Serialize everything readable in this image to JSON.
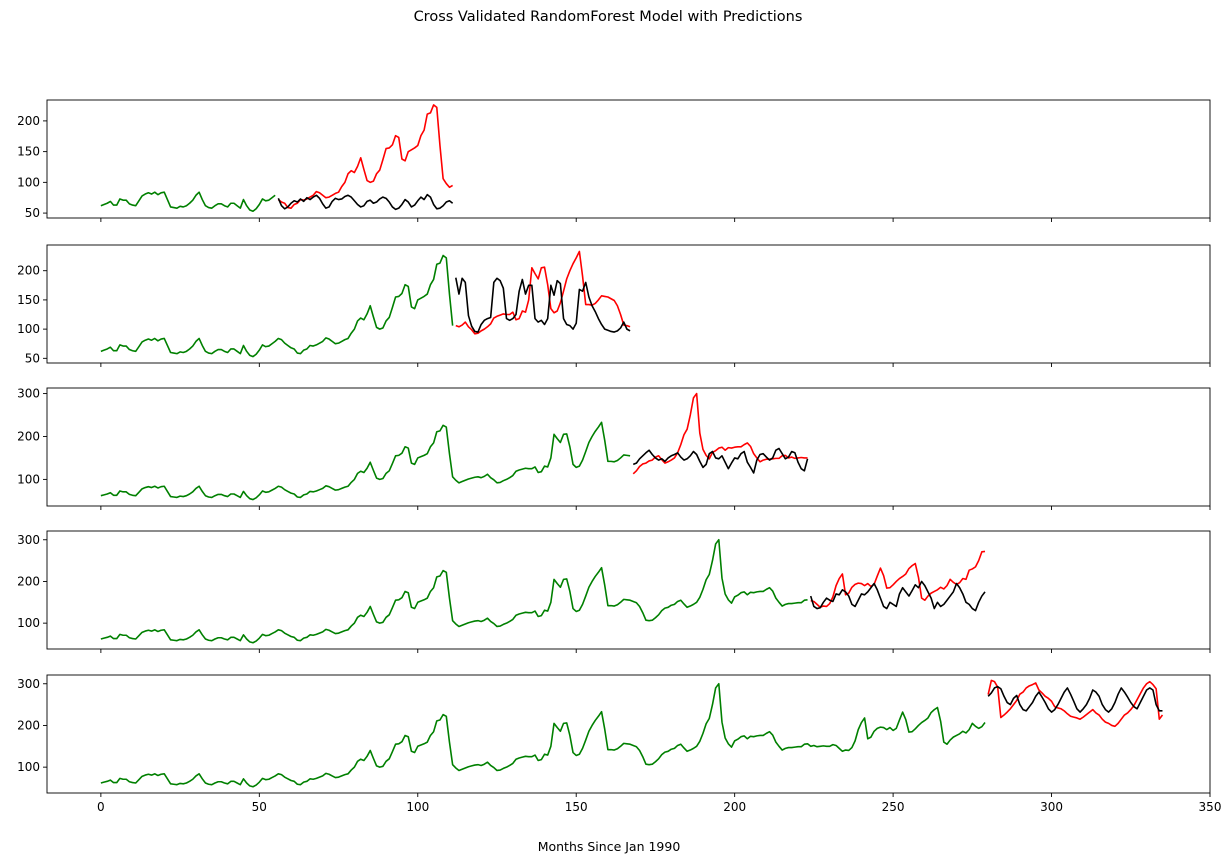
{
  "chart_data": {
    "type": "line",
    "title": "Cross Validated RandomForest Model with Predictions",
    "xlabel": "Months Since Jan 1990",
    "ylabel": "",
    "sharex": true,
    "xlim": [
      -17,
      350
    ],
    "xticks": [
      0,
      50,
      100,
      150,
      200,
      250,
      300,
      350
    ],
    "xtick_labels": [
      "0",
      "50",
      "100",
      "150",
      "200",
      "250",
      "300",
      "350"
    ],
    "colors": {
      "train": "#008000",
      "actual": "#ff0000",
      "predicted": "#000000"
    },
    "series_base": {
      "description": "monthly values used by every panel (panel k shows a contiguous slice of this series)",
      "values": [
        62,
        64,
        66,
        69,
        63,
        63,
        73,
        71,
        71,
        65,
        63,
        62,
        70,
        78,
        81,
        83,
        81,
        84,
        80,
        83,
        84,
        72,
        60,
        59,
        58,
        61,
        60,
        62,
        66,
        71,
        79,
        84,
        72,
        62,
        59,
        58,
        62,
        65,
        65,
        62,
        60,
        66,
        66,
        62,
        58,
        72,
        62,
        55,
        53,
        57,
        64,
        73,
        70,
        71,
        75,
        79,
        84,
        82,
        76,
        72,
        68,
        66,
        59,
        58,
        64,
        66,
        72,
        71,
        73,
        76,
        79,
        85,
        83,
        79,
        75,
        76,
        79,
        82,
        84,
        93,
        100,
        114,
        119,
        116,
        126,
        140,
        121,
        103,
        100,
        102,
        114,
        120,
        137,
        155,
        156,
        161,
        176,
        173,
        138,
        135,
        150,
        153,
        156,
        160,
        176,
        185,
        211,
        213,
        226,
        222,
        160,
        106,
        98,
        92,
        95,
        98,
        101,
        103,
        105,
        106,
        104,
        107,
        112,
        104,
        99,
        92,
        93,
        97,
        100,
        104,
        109,
        119,
        122,
        124,
        126,
        125,
        125,
        129,
        116,
        118,
        131,
        129,
        150,
        205,
        195,
        186,
        205,
        206,
        176,
        135,
        128,
        131,
        145,
        165,
        186,
        200,
        212,
        222,
        233,
        191,
        142,
        142,
        141,
        144,
        150,
        157,
        156,
        155,
        152,
        149,
        140,
        125,
        107,
        106,
        107,
        113,
        120,
        130,
        136,
        138,
        143,
        145,
        152,
        155,
        146,
        138,
        141,
        145,
        150,
        162,
        181,
        204,
        217,
        250,
        290,
        300,
        208,
        170,
        156,
        148,
        163,
        167,
        173,
        175,
        168,
        174,
        173,
        175,
        176,
        176,
        181,
        185,
        177,
        160,
        150,
        141,
        145,
        147,
        147,
        148,
        149,
        149,
        155,
        156,
        150,
        152,
        149,
        150,
        151,
        150,
        150,
        154,
        152,
        145,
        138,
        141,
        140,
        147,
        163,
        190,
        207,
        218,
        168,
        172,
        186,
        193,
        196,
        195,
        190,
        195,
        188,
        193,
        213,
        232,
        214,
        184,
        185,
        192,
        200,
        207,
        212,
        218,
        231,
        238,
        243,
        210,
        160,
        155,
        165,
        172,
        176,
        180,
        186,
        182,
        190,
        205,
        198,
        193,
        197,
        207,
        205,
        227,
        230,
        235,
        250,
        271,
        272,
        274,
        308,
        305,
        292,
        219,
        225,
        232,
        240,
        250,
        260,
        275
      ]
    },
    "panels": [
      {
        "train": {
          "x_start": 0,
          "x_end": 56
        },
        "test_x": [
          56,
          57,
          58,
          59,
          60,
          61,
          62,
          63,
          64,
          65,
          66,
          67,
          68,
          69,
          70,
          71,
          72,
          73,
          74,
          75,
          76,
          77,
          78,
          79,
          80,
          81,
          82,
          83,
          84,
          85,
          86,
          87,
          88,
          89,
          90,
          91,
          92,
          93,
          94,
          95,
          96,
          97,
          98,
          99,
          100,
          101,
          102,
          103,
          104,
          105,
          106,
          107,
          108,
          109,
          110,
          111
        ],
        "actual": [
          72,
          68,
          66,
          59,
          58,
          64,
          66,
          72,
          71,
          73,
          76,
          79,
          85,
          83,
          79,
          75,
          76,
          79,
          82,
          84,
          93,
          100,
          114,
          119,
          116,
          126,
          140,
          121,
          103,
          100,
          102,
          114,
          120,
          137,
          155,
          156,
          161,
          176,
          173,
          138,
          135,
          150,
          153,
          156,
          160,
          176,
          185,
          211,
          213,
          226,
          222,
          160,
          106,
          98,
          92,
          95
        ],
        "predicted": [
          74,
          62,
          57,
          60,
          66,
          70,
          68,
          73,
          69,
          75,
          72,
          76,
          79,
          74,
          65,
          58,
          60,
          69,
          74,
          72,
          73,
          77,
          79,
          76,
          70,
          64,
          60,
          62,
          69,
          71,
          66,
          68,
          73,
          76,
          74,
          68,
          60,
          56,
          58,
          64,
          72,
          68,
          60,
          63,
          70,
          76,
          72,
          80,
          76,
          64,
          57,
          58,
          62,
          68,
          70,
          66
        ]
      },
      {
        "train": {
          "x_start": 0,
          "x_end": 112
        },
        "test_x": [
          112,
          113,
          114,
          115,
          116,
          117,
          118,
          119,
          120,
          121,
          122,
          123,
          124,
          125,
          126,
          127,
          128,
          129,
          130,
          131,
          132,
          133,
          134,
          135,
          136,
          137,
          138,
          139,
          140,
          141,
          142,
          143,
          144,
          145,
          146,
          147,
          148,
          149,
          150,
          151,
          152,
          153,
          154,
          155,
          156,
          157,
          158,
          159,
          160,
          161,
          162,
          163,
          164,
          165,
          166,
          167
        ],
        "actual": [
          106,
          104,
          107,
          112,
          104,
          99,
          92,
          93,
          97,
          100,
          104,
          109,
          119,
          122,
          124,
          126,
          125,
          125,
          129,
          116,
          118,
          131,
          129,
          150,
          205,
          195,
          186,
          205,
          206,
          176,
          135,
          128,
          131,
          145,
          165,
          186,
          200,
          212,
          222,
          233,
          191,
          142,
          142,
          141,
          144,
          150,
          157,
          156,
          155,
          152,
          149,
          140,
          125,
          107,
          106,
          104
        ],
        "predicted": [
          188,
          160,
          187,
          180,
          123,
          105,
          96,
          95,
          108,
          115,
          118,
          120,
          180,
          187,
          183,
          170,
          118,
          115,
          118,
          125,
          165,
          185,
          160,
          175,
          175,
          118,
          112,
          115,
          108,
          118,
          175,
          158,
          183,
          178,
          118,
          108,
          106,
          100,
          110,
          168,
          165,
          180,
          155,
          140,
          130,
          118,
          108,
          100,
          98,
          96,
          95,
          97,
          102,
          112,
          100,
          97
        ]
      },
      {
        "train": {
          "x_start": 0,
          "x_end": 168
        },
        "test_x": [
          168,
          169,
          170,
          171,
          172,
          173,
          174,
          175,
          176,
          177,
          178,
          179,
          180,
          181,
          182,
          183,
          184,
          185,
          186,
          187,
          188,
          189,
          190,
          191,
          192,
          193,
          194,
          195,
          196,
          197,
          198,
          199,
          200,
          201,
          202,
          203,
          204,
          205,
          206,
          207,
          208,
          209,
          210,
          211,
          212,
          213,
          214,
          215,
          216,
          217,
          218,
          219,
          220,
          221,
          222,
          223
        ],
        "actual": [
          113,
          120,
          130,
          136,
          138,
          143,
          145,
          152,
          155,
          146,
          138,
          141,
          145,
          150,
          162,
          181,
          204,
          217,
          250,
          290,
          300,
          208,
          170,
          156,
          148,
          163,
          167,
          173,
          175,
          168,
          174,
          173,
          175,
          176,
          176,
          181,
          185,
          177,
          160,
          150,
          141,
          145,
          147,
          147,
          148,
          149,
          149,
          155,
          156,
          150,
          152,
          149,
          150,
          151,
          150,
          150
        ],
        "predicted": [
          135,
          138,
          148,
          155,
          162,
          168,
          158,
          150,
          145,
          148,
          142,
          150,
          155,
          158,
          162,
          152,
          145,
          148,
          155,
          165,
          158,
          142,
          128,
          135,
          160,
          165,
          150,
          148,
          155,
          140,
          125,
          138,
          150,
          148,
          160,
          165,
          140,
          128,
          115,
          145,
          158,
          160,
          152,
          145,
          150,
          168,
          172,
          160,
          148,
          152,
          165,
          162,
          140,
          125,
          120,
          148
        ]
      },
      {
        "train": {
          "x_start": 0,
          "x_end": 224
        },
        "test_x": [
          224,
          225,
          226,
          227,
          228,
          229,
          230,
          231,
          232,
          233,
          234,
          235,
          236,
          237,
          238,
          239,
          240,
          241,
          242,
          243,
          244,
          245,
          246,
          247,
          248,
          249,
          250,
          251,
          252,
          253,
          254,
          255,
          256,
          257,
          258,
          259,
          260,
          261,
          262,
          263,
          264,
          265,
          266,
          267,
          268,
          269,
          270,
          271,
          272,
          273,
          274,
          275,
          276,
          277,
          278,
          279
        ],
        "actual": [
          154,
          152,
          145,
          138,
          141,
          140,
          147,
          163,
          190,
          207,
          218,
          168,
          172,
          186,
          193,
          196,
          195,
          190,
          195,
          188,
          193,
          213,
          232,
          214,
          184,
          185,
          192,
          200,
          207,
          212,
          218,
          231,
          238,
          243,
          210,
          160,
          155,
          165,
          172,
          176,
          180,
          186,
          182,
          190,
          205,
          198,
          193,
          197,
          207,
          205,
          227,
          230,
          235,
          250,
          271,
          272
        ],
        "predicted": [
          165,
          140,
          135,
          137,
          150,
          160,
          155,
          152,
          170,
          168,
          180,
          175,
          165,
          145,
          140,
          155,
          170,
          168,
          175,
          185,
          195,
          180,
          160,
          140,
          135,
          150,
          145,
          140,
          170,
          185,
          175,
          165,
          178,
          192,
          185,
          200,
          190,
          175,
          160,
          135,
          150,
          140,
          145,
          155,
          165,
          175,
          195,
          185,
          170,
          150,
          145,
          135,
          130,
          150,
          165,
          175
        ]
      },
      {
        "train": {
          "x_start": 0,
          "x_end": 280
        },
        "test_x": [
          280,
          281,
          282,
          283,
          284,
          285,
          286,
          287,
          288,
          289,
          290,
          291,
          292,
          293,
          294,
          295,
          296,
          297,
          298,
          299,
          300,
          301,
          302,
          303,
          304,
          305,
          306,
          307,
          308,
          309,
          310,
          311,
          312,
          313,
          314,
          315,
          316,
          317,
          318,
          319,
          320,
          321,
          322,
          323,
          324,
          325,
          326,
          327,
          328,
          329,
          330,
          331,
          332,
          333,
          334,
          335
        ],
        "actual": [
          274,
          308,
          305,
          292,
          219,
          225,
          232,
          240,
          250,
          260,
          275,
          280,
          290,
          295,
          298,
          302,
          285,
          278,
          270,
          265,
          258,
          245,
          242,
          240,
          235,
          228,
          222,
          220,
          218,
          215,
          220,
          226,
          232,
          238,
          230,
          225,
          215,
          208,
          205,
          200,
          198,
          205,
          215,
          225,
          230,
          238,
          248,
          262,
          276,
          290,
          300,
          305,
          298,
          288,
          215,
          225
        ],
        "predicted": [
          270,
          278,
          290,
          293,
          288,
          270,
          255,
          250,
          265,
          272,
          250,
          238,
          235,
          245,
          255,
          270,
          280,
          268,
          255,
          240,
          232,
          238,
          250,
          265,
          280,
          290,
          275,
          258,
          240,
          232,
          240,
          250,
          265,
          285,
          280,
          270,
          250,
          238,
          232,
          240,
          255,
          275,
          290,
          280,
          268,
          255,
          245,
          240,
          255,
          270,
          285,
          290,
          285,
          250,
          235,
          235
        ]
      }
    ],
    "panel_yticks": [
      {
        "ylim": [
          42,
          234
        ],
        "ticks": [
          50,
          100,
          150,
          200
        ],
        "labels": [
          "50",
          "100",
          "150",
          "200"
        ]
      },
      {
        "ylim": [
          42,
          244
        ],
        "ticks": [
          50,
          100,
          150,
          200
        ],
        "labels": [
          "50",
          "100",
          "150",
          "200"
        ]
      },
      {
        "ylim": [
          38,
          313
        ],
        "ticks": [
          100,
          200,
          300
        ],
        "labels": [
          "100",
          "200",
          "300"
        ]
      },
      {
        "ylim": [
          38,
          321
        ],
        "ticks": [
          100,
          200,
          300
        ],
        "labels": [
          "100",
          "200",
          "300"
        ]
      },
      {
        "ylim": [
          38,
          321
        ],
        "ticks": [
          100,
          200,
          300
        ],
        "labels": [
          "100",
          "200",
          "300"
        ]
      }
    ]
  }
}
